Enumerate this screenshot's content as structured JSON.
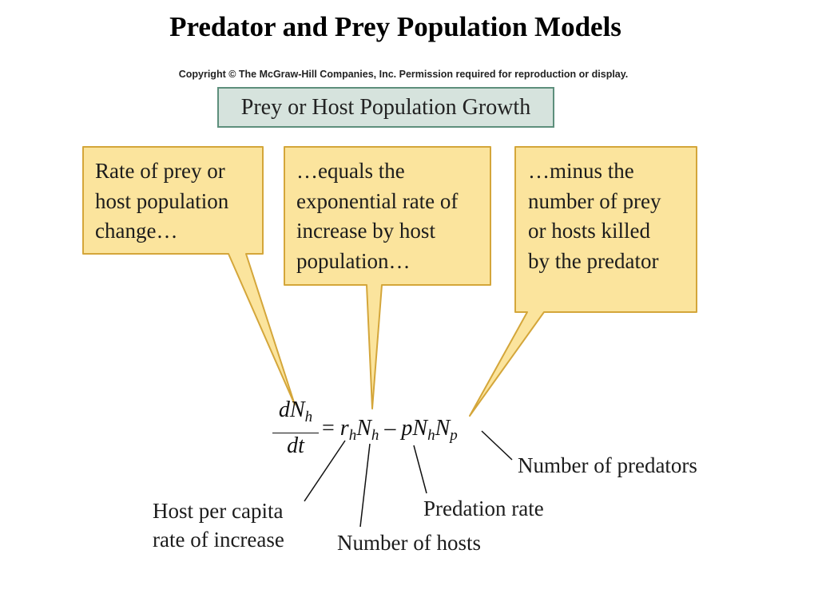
{
  "title": "Predator and Prey Population Models",
  "copyright": "Copyright © The McGraw-Hill Companies, Inc. Permission required for reproduction or display.",
  "header": "Prey or Host Population Growth",
  "callouts": [
    {
      "text": "Rate of prey or\nhost population\nchange…"
    },
    {
      "text": "…equals the\nexponential rate of\nincrease by host\npopulation…"
    },
    {
      "text": "…minus the\nnumber of prey\nor hosts killed\nby the predator"
    }
  ],
  "equation": {
    "num_d": "d",
    "num_N": "N",
    "num_h": "h",
    "den": "dt",
    "eq": "=",
    "r": "r",
    "r_sub": "h",
    "N1": "N",
    "N1_sub": "h",
    "minus": "–",
    "p": "p",
    "N2": "N",
    "N2_sub": "h",
    "N3": "N",
    "N3_sub": "p"
  },
  "labels": {
    "predators": "Number of predators",
    "per_capita": "Host per capita\nrate of increase",
    "predation": "Predation rate",
    "hosts": "Number of hosts"
  },
  "colors": {
    "callout_fill": "#fbe49d",
    "callout_stroke": "#d4a63a",
    "header_fill": "#d6e3dd",
    "header_stroke": "#5d8f7c"
  }
}
